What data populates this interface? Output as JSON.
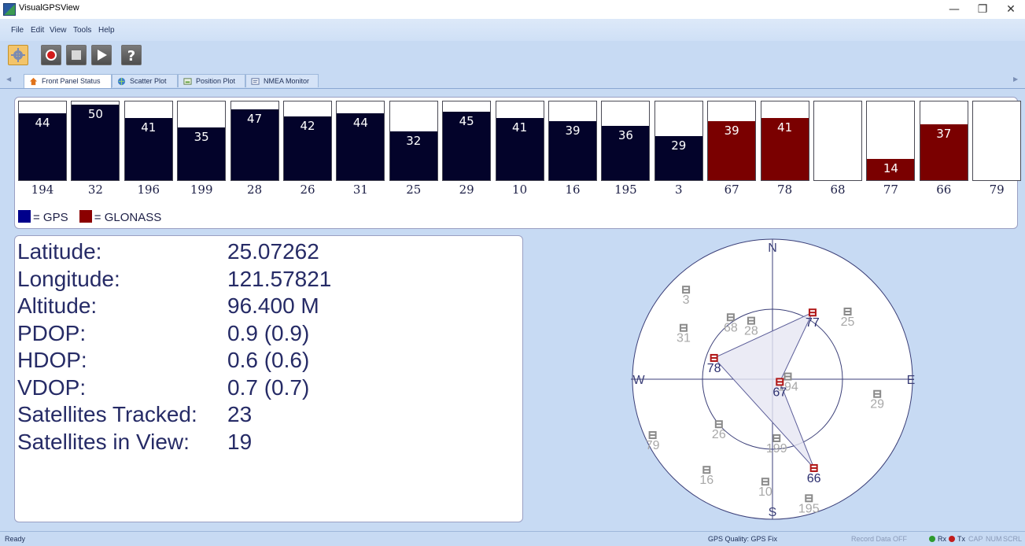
{
  "window": {
    "title": "VisualGPSView"
  },
  "menu": [
    "File",
    "Edit",
    "View",
    "Tools",
    "Help"
  ],
  "toolbar": [
    {
      "name": "settings-button",
      "icon": "gear-icon"
    },
    {
      "name": "record-button",
      "icon": "record-icon"
    },
    {
      "name": "stop-button",
      "icon": "stop-icon"
    },
    {
      "name": "play-button",
      "icon": "play-icon"
    },
    {
      "name": "help-button",
      "icon": "question-icon"
    }
  ],
  "tabs": [
    {
      "label": "Front Panel Status",
      "icon": "home-icon",
      "active": true
    },
    {
      "label": "Scatter Plot",
      "icon": "globe-icon",
      "active": false
    },
    {
      "label": "Position Plot",
      "icon": "chart-icon",
      "active": false
    },
    {
      "label": "NMEA Monitor",
      "icon": "monitor-icon",
      "active": false
    }
  ],
  "colors": {
    "gps": "#03032a",
    "glonass": "#7a0000",
    "window": "#c7daf3"
  },
  "signal_bars": [
    {
      "prn": "194",
      "snr": 44,
      "system": "gps"
    },
    {
      "prn": "32",
      "snr": 50,
      "system": "gps"
    },
    {
      "prn": "196",
      "snr": 41,
      "system": "gps"
    },
    {
      "prn": "199",
      "snr": 35,
      "system": "gps"
    },
    {
      "prn": "28",
      "snr": 47,
      "system": "gps"
    },
    {
      "prn": "26",
      "snr": 42,
      "system": "gps"
    },
    {
      "prn": "31",
      "snr": 44,
      "system": "gps"
    },
    {
      "prn": "25",
      "snr": 32,
      "system": "gps"
    },
    {
      "prn": "29",
      "snr": 45,
      "system": "gps"
    },
    {
      "prn": "10",
      "snr": 41,
      "system": "gps"
    },
    {
      "prn": "16",
      "snr": 39,
      "system": "gps"
    },
    {
      "prn": "195",
      "snr": 36,
      "system": "gps"
    },
    {
      "prn": "3",
      "snr": 29,
      "system": "gps"
    },
    {
      "prn": "67",
      "snr": 39,
      "system": "glonass"
    },
    {
      "prn": "78",
      "snr": 41,
      "system": "glonass"
    },
    {
      "prn": "68",
      "snr": null,
      "system": "none"
    },
    {
      "prn": "77",
      "snr": 14,
      "system": "glonass"
    },
    {
      "prn": "66",
      "snr": 37,
      "system": "glonass"
    },
    {
      "prn": "79",
      "snr": null,
      "system": "none"
    }
  ],
  "legend": {
    "gps": "= GPS",
    "glonass": "= GLONASS"
  },
  "info": [
    {
      "label": "Latitude:",
      "value": "25.07262"
    },
    {
      "label": "Longitude:",
      "value": "121.57821"
    },
    {
      "label": "Altitude:",
      "value": "96.400 M"
    },
    {
      "label": "PDOP:",
      "value": "0.9 (0.9)"
    },
    {
      "label": "HDOP:",
      "value": "0.6 (0.6)"
    },
    {
      "label": "VDOP:",
      "value": "0.7 (0.7)"
    },
    {
      "label": "Satellites Tracked:",
      "value": "23"
    },
    {
      "label": "Satellites in View:",
      "value": "19"
    }
  ],
  "sky": {
    "compass": {
      "n": "N",
      "s": "S",
      "e": "E",
      "w": "W"
    },
    "satellites": [
      {
        "prn": "3",
        "az": 316,
        "el": 10,
        "used": false
      },
      {
        "prn": "77",
        "az": 31,
        "el": 40,
        "used": true
      },
      {
        "prn": "25",
        "az": 48,
        "el": 25,
        "used": false
      },
      {
        "prn": "68",
        "az": 326,
        "el": 42,
        "used": false
      },
      {
        "prn": "28",
        "az": 340,
        "el": 50,
        "used": false
      },
      {
        "prn": "31",
        "az": 300,
        "el": 24,
        "used": false
      },
      {
        "prn": "78",
        "az": 290,
        "el": 50,
        "used": true
      },
      {
        "prn": "194",
        "az": 80,
        "el": 80,
        "used": false
      },
      {
        "prn": "67",
        "az": 110,
        "el": 85,
        "used": true
      },
      {
        "prn": "29",
        "az": 98,
        "el": 22,
        "used": false
      },
      {
        "prn": "26",
        "az": 230,
        "el": 45,
        "used": false
      },
      {
        "prn": "199",
        "az": 176,
        "el": 52,
        "used": false
      },
      {
        "prn": "79",
        "az": 245,
        "el": 5,
        "used": false
      },
      {
        "prn": "16",
        "az": 216,
        "el": 18,
        "used": false
      },
      {
        "prn": "10",
        "az": 184,
        "el": 24,
        "used": false
      },
      {
        "prn": "66",
        "az": 155,
        "el": 27,
        "used": true
      },
      {
        "prn": "195",
        "az": 163,
        "el": 10,
        "used": false
      }
    ]
  },
  "status": {
    "left": "Ready",
    "quality": "GPS Quality: GPS Fix",
    "record": "Record Data OFF",
    "rx": "Rx",
    "tx": "Tx",
    "cap": "CAP",
    "num": "NUM",
    "scrl": "SCRL"
  }
}
